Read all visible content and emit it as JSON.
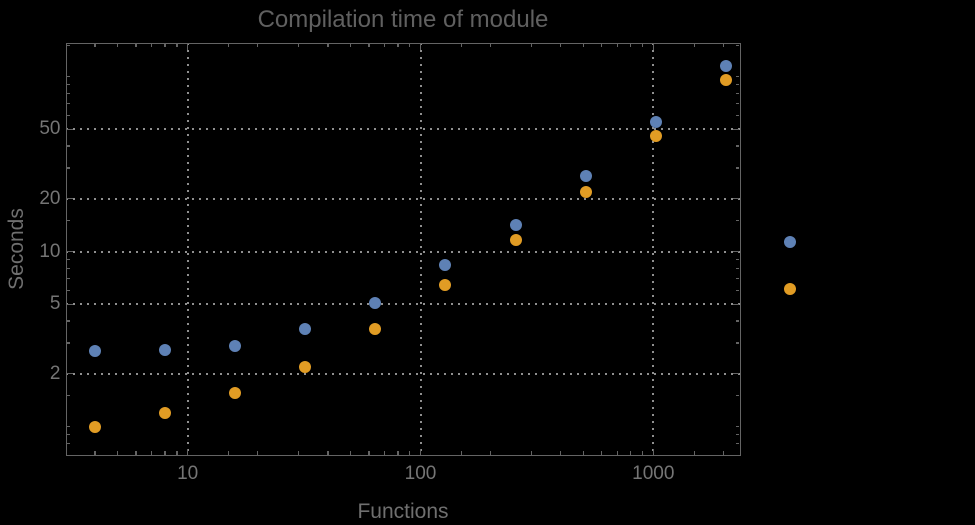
{
  "chart": {
    "title": "Compilation time of module",
    "xlabel": "Functions",
    "ylabel": "Seconds"
  },
  "chart_data": {
    "type": "scatter",
    "title": "Compilation time of module",
    "xlabel": "Functions",
    "ylabel": "Seconds",
    "x_scale": "log",
    "y_scale": "log",
    "xlim": [
      3,
      2350
    ],
    "ylim": [
      0.72,
      152
    ],
    "x_ticks": [
      10,
      100,
      1000
    ],
    "y_ticks": [
      2,
      5,
      10,
      20,
      50
    ],
    "grid": "dotted",
    "grid_x": [
      10,
      100,
      1000
    ],
    "grid_y": [
      2,
      5,
      10,
      20,
      50
    ],
    "categories": [
      4,
      8,
      16,
      32,
      64,
      128,
      256,
      512,
      1024,
      2048
    ],
    "series": [
      {
        "name": "blue-series",
        "color": "#5e81b5",
        "values": [
          2.7,
          2.75,
          2.9,
          3.6,
          5.1,
          8.4,
          14.2,
          27,
          55,
          115
        ]
      },
      {
        "name": "orange-series",
        "color": "#e19c24",
        "values": [
          1.0,
          1.2,
          1.55,
          2.2,
          3.6,
          6.4,
          11.7,
          22,
          46,
          96
        ]
      }
    ],
    "legend": {
      "position": "right-outside",
      "labels_visible": false,
      "marker_colors": [
        "#5e81b5",
        "#e19c24"
      ]
    }
  },
  "colors": {
    "background": "#000000",
    "frame": "#646464",
    "grid": "#8f8f8f",
    "title_text": "#606060",
    "tick_text": "#757575",
    "axis_label_text": "#6f6f6f",
    "series_blue": "#5e81b5",
    "series_orange": "#e19c24"
  }
}
